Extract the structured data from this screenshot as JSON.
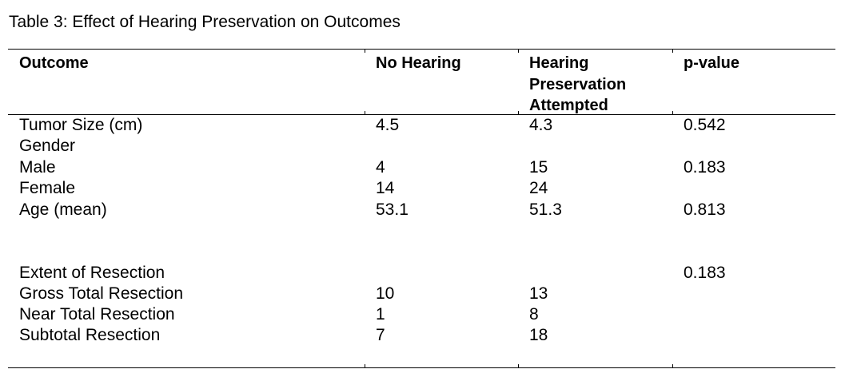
{
  "caption": "Table 3: Effect of Hearing Preservation on Outcomes",
  "headers": [
    "Outcome",
    "No Hearing",
    "Hearing Preservation Attempted",
    "p-value"
  ],
  "header_lines": {
    "hearing": [
      "Hearing",
      "Preservation",
      "Attempted"
    ]
  },
  "rows": [
    {
      "outcome": "Tumor Size (cm)",
      "no_hearing": "4.5",
      "hearing_attempted": "4.3",
      "p_value": "0.542"
    },
    {
      "outcome": "Gender",
      "no_hearing": "",
      "hearing_attempted": "",
      "p_value": ""
    },
    {
      "outcome": "Male",
      "no_hearing": "4",
      "hearing_attempted": "15",
      "p_value": "0.183"
    },
    {
      "outcome": "Female",
      "no_hearing": "14",
      "hearing_attempted": "24",
      "p_value": ""
    },
    {
      "outcome": "Age (mean)",
      "no_hearing": "53.1",
      "hearing_attempted": "51.3",
      "p_value": "0.813"
    },
    {
      "outcome": "",
      "no_hearing": "",
      "hearing_attempted": "",
      "p_value": ""
    },
    {
      "outcome": "",
      "no_hearing": "",
      "hearing_attempted": "",
      "p_value": ""
    },
    {
      "outcome": "Extent of Resection",
      "no_hearing": "",
      "hearing_attempted": "",
      "p_value": "0.183"
    },
    {
      "outcome": "Gross Total Resection",
      "no_hearing": "10",
      "hearing_attempted": "13",
      "p_value": ""
    },
    {
      "outcome": "Near Total Resection",
      "no_hearing": "1",
      "hearing_attempted": "8",
      "p_value": ""
    },
    {
      "outcome": "Subtotal Resection",
      "no_hearing": "7",
      "hearing_attempted": "18",
      "p_value": ""
    }
  ]
}
